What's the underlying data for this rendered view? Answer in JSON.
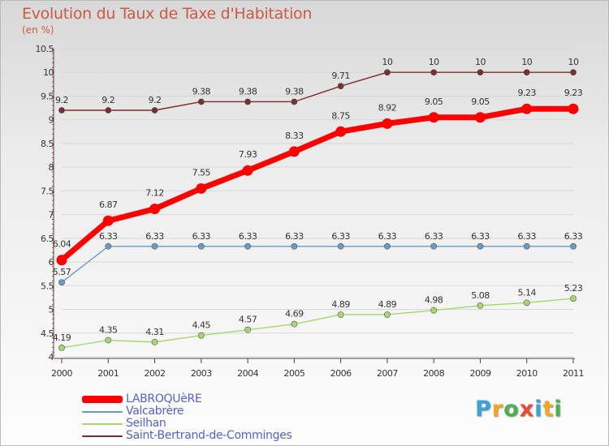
{
  "title": "Evolution du Taux de Taxe d'Habitation",
  "subtitle": "(en %)",
  "logo": {
    "letters": [
      "P",
      "r",
      "o",
      "x",
      "i",
      "t",
      "i"
    ],
    "colors": [
      "#3aa3d8",
      "#f5a623",
      "#4caf50",
      "#e94b35",
      "#3aa3d8",
      "#f5a623",
      "#4caf50"
    ]
  },
  "chart_data": {
    "type": "line",
    "title": "Evolution du Taux de Taxe d'Habitation",
    "ylabel": "(en %)",
    "xlabel": "",
    "x": [
      "2000",
      "2001",
      "2002",
      "2003",
      "2004",
      "2005",
      "2006",
      "2007",
      "2008",
      "2009",
      "2010",
      "2011"
    ],
    "ylim": [
      4,
      10.5
    ],
    "yticks": [
      4,
      4.5,
      5,
      5.5,
      6,
      6.5,
      7,
      7.5,
      8,
      8.5,
      9,
      9.5,
      10,
      10.5
    ],
    "ytick_labels": [
      "4",
      "4.5",
      "5",
      "5.5",
      "6",
      "6.5",
      "7",
      "7.5",
      "8",
      "8.5",
      "9",
      "9.5",
      "10",
      "10.5"
    ],
    "legend_position": "bottom-left",
    "series": [
      {
        "name": "LABROQUèRE",
        "color": "#ff0000",
        "highlight": true,
        "values": [
          6.04,
          6.87,
          7.12,
          7.55,
          7.93,
          8.33,
          8.75,
          8.92,
          9.05,
          9.05,
          9.23,
          9.23
        ],
        "labels": [
          "6.04",
          "6.87",
          "7.12",
          "7.55",
          "7.93",
          "8.33",
          "8.75",
          "8.92",
          "9.05",
          "9.05",
          "9.23",
          "9.23"
        ]
      },
      {
        "name": "Valcabrère",
        "color": "#6a9bc7",
        "highlight": false,
        "values": [
          5.57,
          6.33,
          6.33,
          6.33,
          6.33,
          6.33,
          6.33,
          6.33,
          6.33,
          6.33,
          6.33,
          6.33
        ],
        "labels": [
          "5.57",
          "6.33",
          "6.33",
          "6.33",
          "6.33",
          "6.33",
          "6.33",
          "6.33",
          "6.33",
          "6.33",
          "6.33",
          "6.33"
        ]
      },
      {
        "name": "Seilhan",
        "color": "#a6d86e",
        "highlight": false,
        "values": [
          4.19,
          4.35,
          4.31,
          4.45,
          4.57,
          4.69,
          4.89,
          4.89,
          4.98,
          5.08,
          5.14,
          5.23
        ],
        "labels": [
          "4.19",
          "4.35",
          "4.31",
          "4.45",
          "4.57",
          "4.69",
          "4.89",
          "4.89",
          "4.98",
          "5.08",
          "5.14",
          "5.23"
        ]
      },
      {
        "name": "Saint-Bertrand-de-Comminges",
        "color": "#7a2e2e",
        "highlight": false,
        "values": [
          9.2,
          9.2,
          9.2,
          9.38,
          9.38,
          9.38,
          9.71,
          10,
          10,
          10,
          10,
          10
        ],
        "labels": [
          "9.2",
          "9.2",
          "9.2",
          "9.38",
          "9.38",
          "9.38",
          "9.71",
          "10",
          "10",
          "10",
          "10",
          "10"
        ]
      }
    ]
  }
}
